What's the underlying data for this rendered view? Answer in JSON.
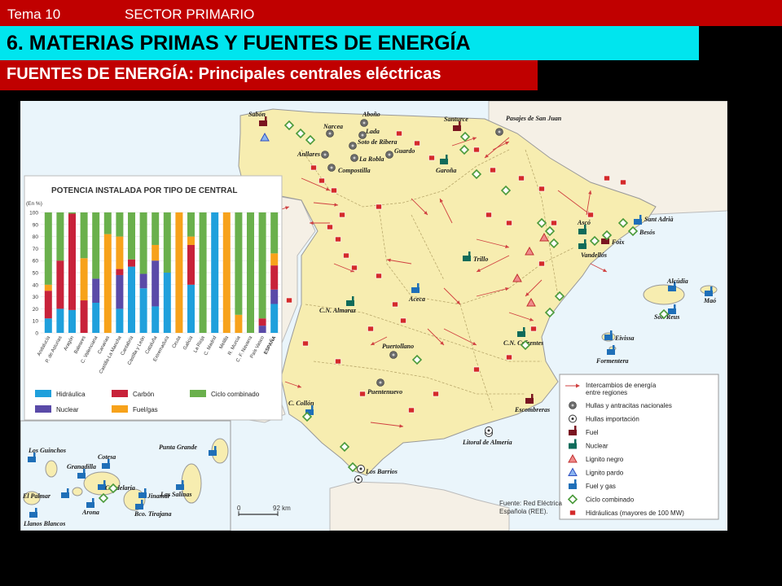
{
  "header": {
    "tema": "Tema 10",
    "sector": "SECTOR PRIMARIO"
  },
  "title": "6. MATERIAS PRIMAS Y FUENTES DE ENERGÍA",
  "subtitle": "FUENTES DE ENERGÍA: Principales centrales eléctricas",
  "map": {
    "places": [
      {
        "name": "Sabón",
        "type": "fuel"
      },
      {
        "name": "Aboño",
        "type": "hullas"
      },
      {
        "name": "Narcea",
        "type": "hullas"
      },
      {
        "name": "Lada",
        "type": "hullas"
      },
      {
        "name": "Soto de Ribera",
        "type": "hullas"
      },
      {
        "name": "La Robla",
        "type": "hullas"
      },
      {
        "name": "Compostilla",
        "type": "hullas"
      },
      {
        "name": "Anllares",
        "type": "hullas"
      },
      {
        "name": "Guardo",
        "type": "hullas"
      },
      {
        "name": "Santurce",
        "type": "fuel"
      },
      {
        "name": "Pasajes de San Juan",
        "type": "hullas"
      },
      {
        "name": "Garoña",
        "type": "nuclear"
      },
      {
        "name": "Ascó",
        "type": "nuclear"
      },
      {
        "name": "Sant Adrià",
        "type": "fuel_gas"
      },
      {
        "name": "Besós",
        "type": "ciclo"
      },
      {
        "name": "Foix",
        "type": "fuel"
      },
      {
        "name": "Vandellós",
        "type": "nuclear"
      },
      {
        "name": "Trillo",
        "type": "nuclear"
      },
      {
        "name": "Alcúdia",
        "type": "fuel_gas"
      },
      {
        "name": "Maó",
        "type": "fuel_gas"
      },
      {
        "name": "Son Reus",
        "type": "fuel_gas"
      },
      {
        "name": "C.N. Almaraz",
        "type": "nuclear"
      },
      {
        "name": "Aceca",
        "type": "fuel_gas"
      },
      {
        "name": "Eivissa",
        "type": "fuel_gas"
      },
      {
        "name": "Formentera",
        "type": "fuel_gas"
      },
      {
        "name": "C.N. Cofrentes",
        "type": "nuclear"
      },
      {
        "name": "Puertollano",
        "type": "hullas"
      },
      {
        "name": "Puentenuevo",
        "type": "hullas"
      },
      {
        "name": "Escombreras",
        "type": "fuel"
      },
      {
        "name": "C. Collón",
        "type": "fuel_gas"
      },
      {
        "name": "Litoral de Almería",
        "type": "hullas_imp"
      },
      {
        "name": "Los Barrios",
        "type": "hullas_imp"
      },
      {
        "name": "Los Guinchos",
        "type": "fuel_gas"
      },
      {
        "name": "Punta Grande",
        "type": "fuel_gas"
      },
      {
        "name": "Cotesa",
        "type": "fuel_gas"
      },
      {
        "name": "Granadilla",
        "type": "fuel_gas"
      },
      {
        "name": "Candelaria",
        "type": "fuel_gas"
      },
      {
        "name": "El Palmar",
        "type": "fuel_gas"
      },
      {
        "name": "Jinamar",
        "type": "fuel_gas"
      },
      {
        "name": "Las Salinas",
        "type": "fuel_gas"
      },
      {
        "name": "Arona",
        "type": "fuel_gas"
      },
      {
        "name": "Bco. Tirajana",
        "type": "fuel_gas"
      },
      {
        "name": "Llanos Blancos",
        "type": "fuel_gas"
      }
    ],
    "legend": [
      {
        "label": "Intercambios de energía entre regiones",
        "icon": "arrow-icon"
      },
      {
        "label": "Hullas y antracitas nacionales",
        "icon": "gear-gray-icon"
      },
      {
        "label": "Hullas importación",
        "icon": "gear-outline-icon"
      },
      {
        "label": "Fuel",
        "icon": "factory-darkred-icon"
      },
      {
        "label": "Nuclear",
        "icon": "factory-green-icon"
      },
      {
        "label": "Lignito negro",
        "icon": "triangle-red-icon"
      },
      {
        "label": "Lignito pardo",
        "icon": "triangle-blue-icon"
      },
      {
        "label": "Fuel y gas",
        "icon": "factory-blue-icon"
      },
      {
        "label": "Ciclo combinado",
        "icon": "diamond-green-icon"
      },
      {
        "label": "Hidráulicas (mayores de 100 MW)",
        "icon": "square-red-icon"
      }
    ],
    "scale": {
      "zero": "0",
      "km": "92 km"
    },
    "source": "Fuente: Red Eléctrica Española (REE)."
  },
  "chart_data": {
    "type": "bar",
    "stacked": true,
    "title": "POTENCIA INSTALADA POR TIPO DE CENTRAL",
    "ylabel": "(En %)",
    "ylim": [
      0,
      100
    ],
    "yticks": [
      0,
      10,
      20,
      30,
      40,
      50,
      60,
      70,
      80,
      90,
      100
    ],
    "categories": [
      "Andalucía",
      "P. de Asturias",
      "Aragón",
      "Baleares",
      "C. Valenciana",
      "Canarias",
      "Castilla-La Mancha",
      "Cantabria",
      "Castilla y León",
      "Cataluña",
      "Extremadura",
      "Ceuta",
      "Galicia",
      "La Rioja",
      "C. Madrid",
      "Melilla",
      "R. Murcia",
      "C. F. Navarra",
      "País Vasco",
      "ESPAÑA"
    ],
    "series": [
      {
        "name": "Hidráulica",
        "color": "#1fa0dc",
        "values": [
          12,
          20,
          19,
          0,
          25,
          0,
          20,
          55,
          37,
          22,
          50,
          0,
          40,
          0,
          100,
          0,
          0,
          0,
          0,
          24
        ]
      },
      {
        "name": "Nuclear",
        "color": "#5a4aa8",
        "values": [
          0,
          0,
          0,
          0,
          20,
          0,
          28,
          0,
          12,
          38,
          0,
          0,
          0,
          0,
          0,
          0,
          0,
          0,
          6,
          12
        ]
      },
      {
        "name": "Carbón",
        "color": "#c8223a",
        "values": [
          23,
          40,
          80,
          27,
          0,
          0,
          5,
          6,
          0,
          0,
          0,
          0,
          33,
          0,
          0,
          0,
          0,
          0,
          6,
          20
        ]
      },
      {
        "name": "Fuel/gas",
        "color": "#f7a21b",
        "values": [
          5,
          0,
          0,
          35,
          0,
          82,
          27,
          0,
          0,
          13,
          0,
          100,
          7,
          0,
          0,
          100,
          15,
          0,
          0,
          10
        ]
      },
      {
        "name": "Ciclo combinado",
        "color": "#6ab04c",
        "values": [
          60,
          40,
          1,
          38,
          55,
          18,
          20,
          39,
          51,
          27,
          50,
          0,
          20,
          100,
          0,
          0,
          85,
          100,
          88,
          34
        ]
      }
    ]
  }
}
